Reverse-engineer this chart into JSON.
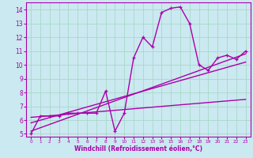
{
  "xlabel": "Windchill (Refroidissement éolien,°C)",
  "xlim": [
    -0.5,
    23.5
  ],
  "ylim": [
    4.8,
    14.5
  ],
  "xticks": [
    0,
    1,
    2,
    3,
    4,
    5,
    6,
    7,
    8,
    9,
    10,
    11,
    12,
    13,
    14,
    15,
    16,
    17,
    18,
    19,
    20,
    21,
    22,
    23
  ],
  "yticks": [
    5,
    6,
    7,
    8,
    9,
    10,
    11,
    12,
    13,
    14
  ],
  "bg_color": "#cbe9f0",
  "grid_color": "#a8d8c8",
  "line_color": "#aa00aa",
  "line1_x": [
    0,
    1,
    2,
    3,
    4,
    5,
    6,
    7,
    8,
    9,
    10,
    11,
    12,
    13,
    14,
    15,
    16,
    17,
    18,
    19,
    20,
    21,
    22,
    23
  ],
  "line1_y": [
    5.0,
    6.3,
    6.3,
    6.3,
    6.5,
    6.5,
    6.5,
    6.5,
    8.1,
    5.2,
    6.5,
    10.5,
    12.0,
    11.3,
    13.8,
    14.1,
    14.2,
    13.0,
    10.0,
    9.6,
    10.5,
    10.7,
    10.4,
    11.0
  ],
  "line2_x": [
    0,
    23
  ],
  "line2_y": [
    5.2,
    10.8
  ],
  "line3_x": [
    0,
    23
  ],
  "line3_y": [
    5.8,
    10.2
  ],
  "line4_x": [
    0,
    23
  ],
  "line4_y": [
    6.2,
    7.5
  ]
}
